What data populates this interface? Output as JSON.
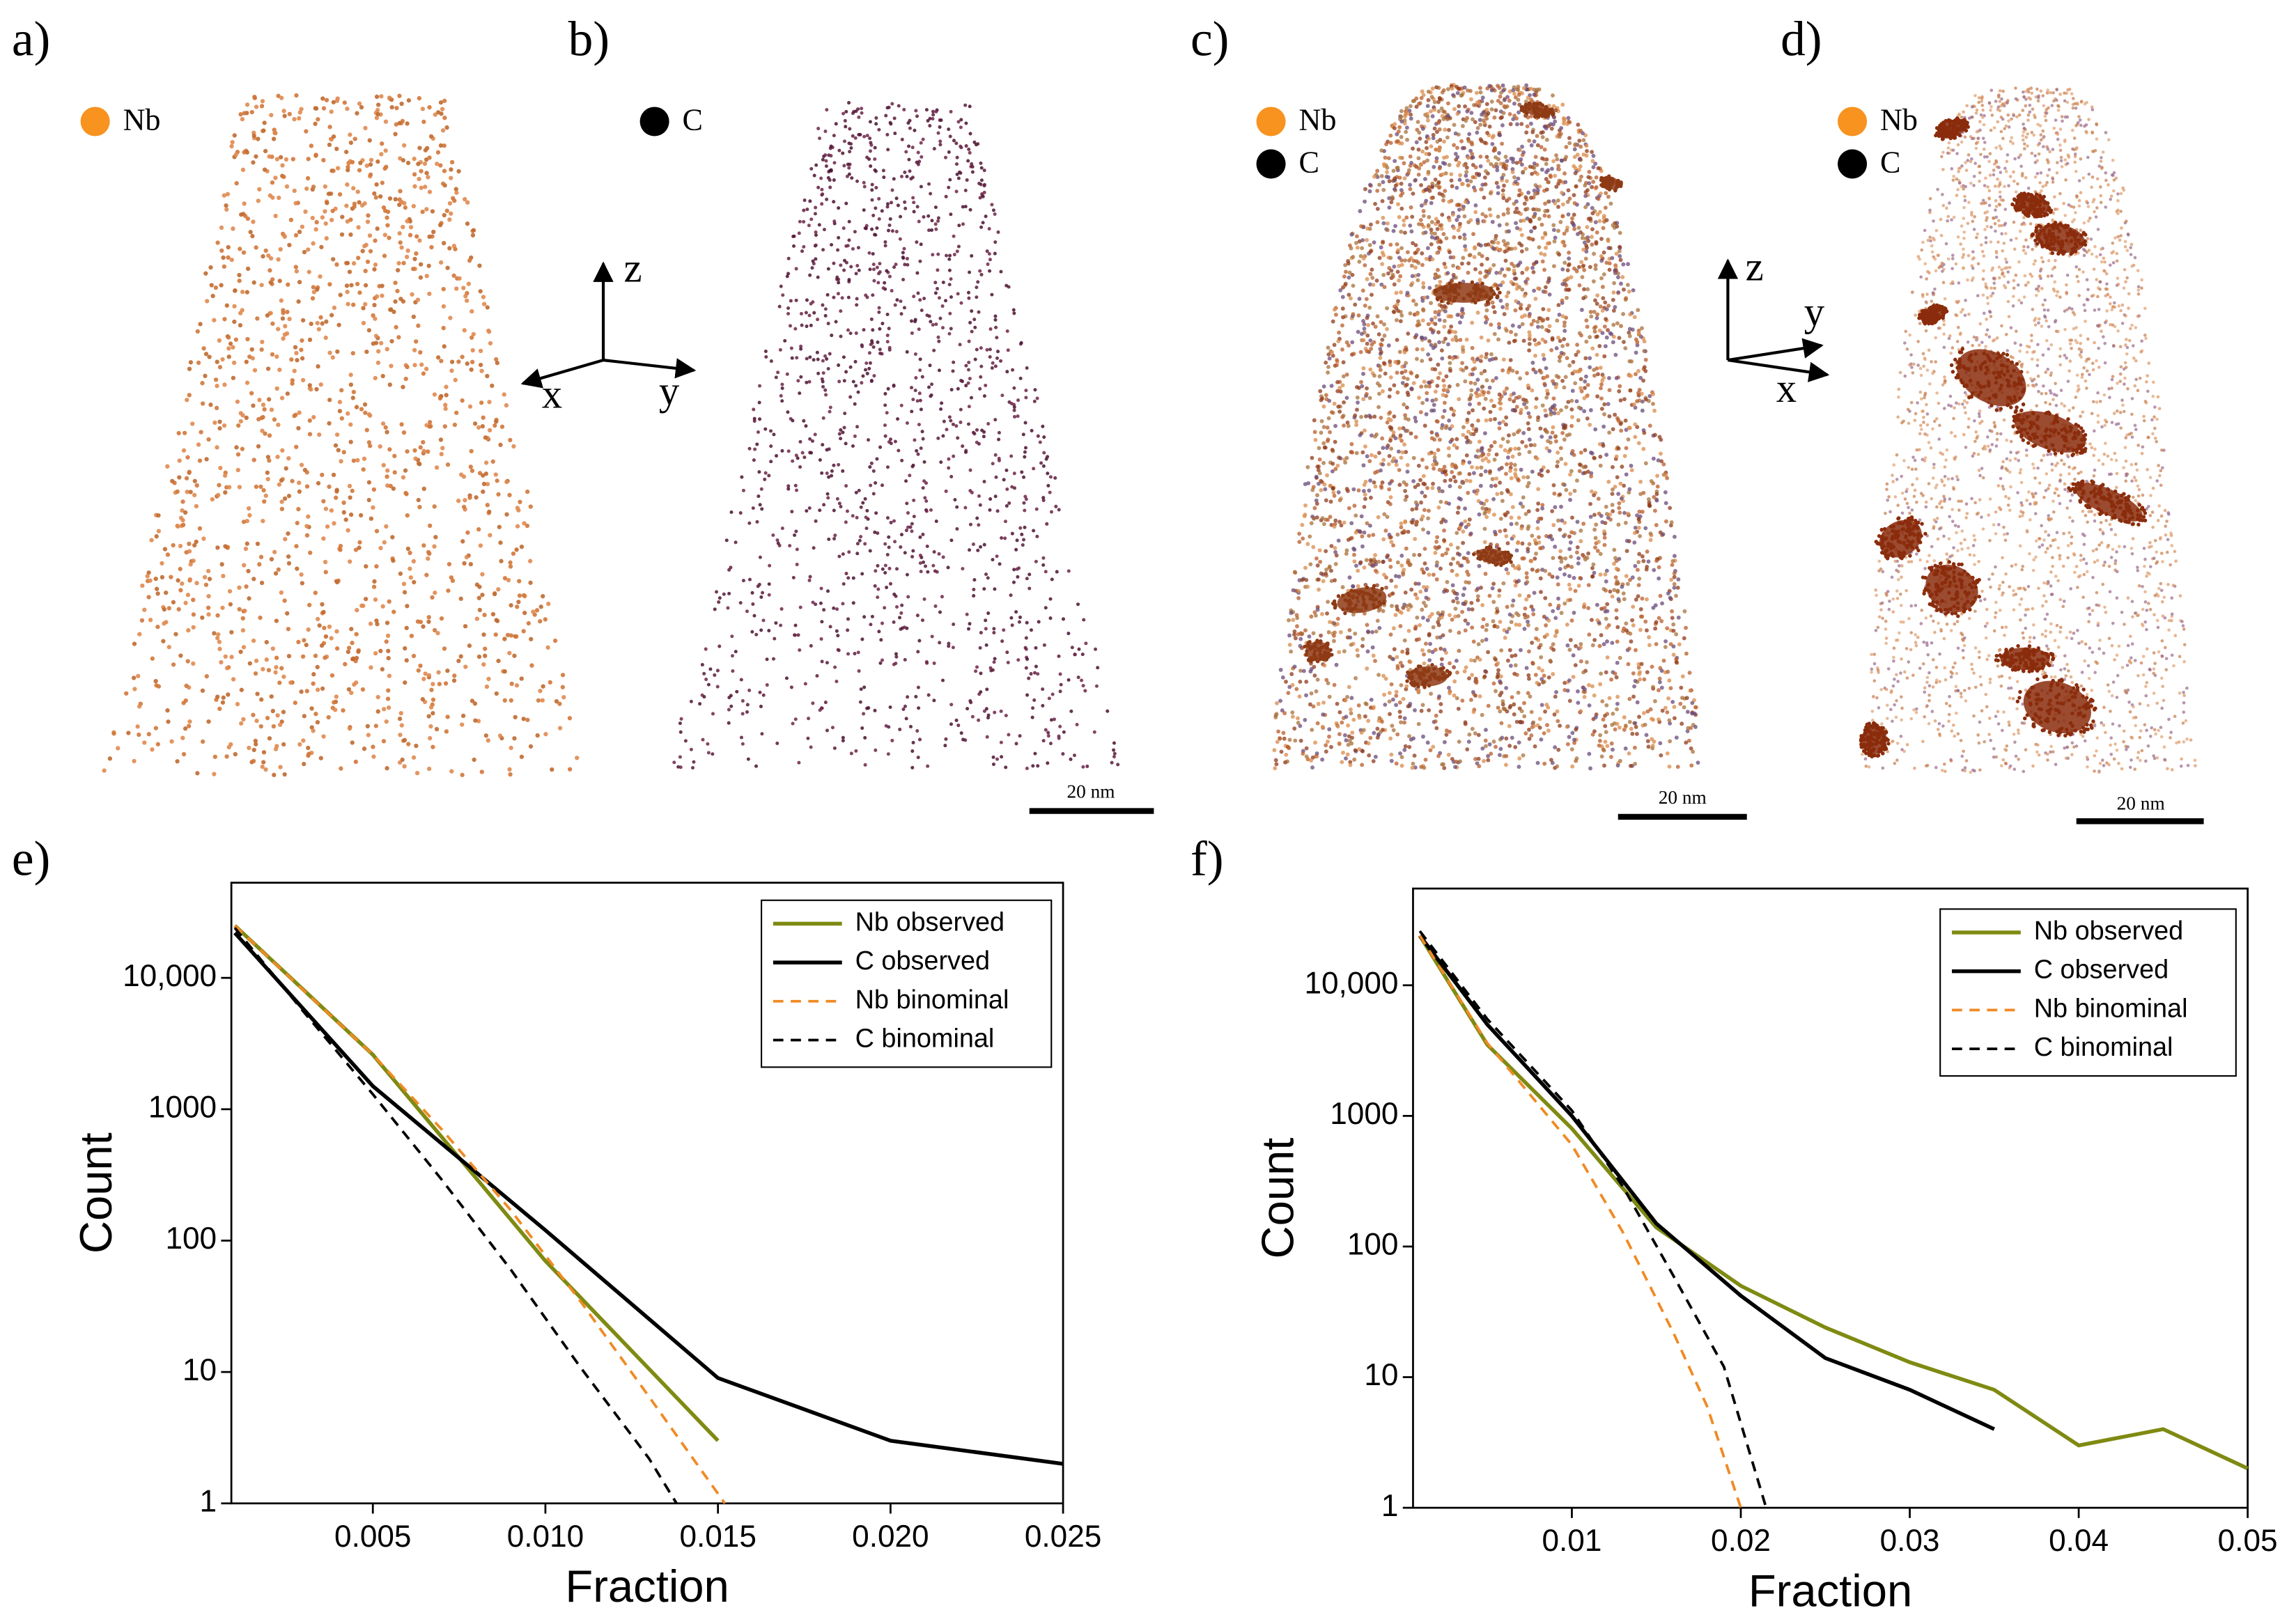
{
  "maps": [
    {
      "panel": "a)",
      "legend": [
        "Nb"
      ]
    },
    {
      "panel": "b)",
      "legend": [
        "C"
      ],
      "scale_bar": "20 nm"
    },
    {
      "panel": "c)",
      "legend": [
        "Nb",
        "C"
      ],
      "scale_bar": "20 nm"
    },
    {
      "panel": "d)",
      "legend": [
        "Nb",
        "C"
      ],
      "scale_bar": "20 nm"
    }
  ],
  "axes_triads": [
    {
      "z": "z",
      "x": "x",
      "y": "y"
    },
    {
      "z": "z",
      "x": "x",
      "y": "y"
    }
  ],
  "chart_data": [
    {
      "type": "line",
      "panel": "e)",
      "x_label": "Fraction",
      "y_label": "Count",
      "ylog": true,
      "legend": "upper right",
      "xlim": [
        0.0009,
        0.025
      ],
      "xticks": [
        0.005,
        {
          "value": 0.01,
          "label": "0.010"
        },
        0.015,
        {
          "value": 0.02,
          "label": "0.020"
        },
        0.025
      ],
      "ylim": [
        1,
        53000
      ],
      "yticks": [
        1,
        10,
        100,
        1000,
        {
          "value": 10000,
          "label": "10,000"
        }
      ],
      "series": [
        {
          "name": "Nb observed",
          "color": "#7f8a12",
          "dash": false,
          "x": [
            0.001,
            0.005,
            0.01,
            0.015
          ],
          "values": [
            25000,
            2600,
            70,
            3
          ]
        },
        {
          "name": "C observed",
          "color": "#000000",
          "dash": false,
          "x": [
            0.001,
            0.005,
            0.01,
            0.015,
            0.02,
            0.025
          ],
          "values": [
            22000,
            1500,
            120,
            9,
            3,
            2
          ]
        },
        {
          "name": "Nb binominal",
          "color": "#f08a24",
          "dash": true,
          "x": [
            0.001,
            0.003,
            0.005,
            0.007,
            0.009,
            0.011,
            0.013,
            0.0152
          ],
          "values": [
            25000,
            8000,
            2600,
            700,
            170,
            35,
            6.5,
            1
          ]
        },
        {
          "name": "C binominal",
          "color": "#000000",
          "dash": true,
          "x": [
            0.001,
            0.003,
            0.005,
            0.007,
            0.009,
            0.011,
            0.013,
            0.0138
          ],
          "values": [
            24000,
            5500,
            1300,
            290,
            60,
            11,
            2.2,
            1
          ]
        }
      ]
    },
    {
      "type": "line",
      "panel": "f)",
      "x_label": "Fraction",
      "y_label": "Count",
      "ylog": true,
      "legend": "upper right",
      "xlim": [
        0.0006,
        0.05
      ],
      "xticks": [
        0.01,
        0.02,
        0.03,
        0.04,
        0.05
      ],
      "ylim": [
        1,
        55000
      ],
      "yticks": [
        1,
        10,
        100,
        1000,
        {
          "value": 10000,
          "label": "10,000"
        }
      ],
      "series": [
        {
          "name": "Nb observed",
          "color": "#7f8a12",
          "dash": false,
          "x": [
            0.001,
            0.005,
            0.01,
            0.015,
            0.02,
            0.025,
            0.03,
            0.035,
            0.04,
            0.045,
            0.05
          ],
          "values": [
            24000,
            3500,
            800,
            140,
            50,
            24,
            13,
            8,
            3,
            4,
            2
          ]
        },
        {
          "name": "C observed",
          "color": "#000000",
          "dash": false,
          "x": [
            0.001,
            0.005,
            0.01,
            0.015,
            0.02,
            0.025,
            0.03,
            0.035
          ],
          "values": [
            24000,
            5000,
            1000,
            150,
            42,
            14,
            8,
            4
          ]
        },
        {
          "name": "Nb binominal",
          "color": "#f08a24",
          "dash": true,
          "x": [
            0.001,
            0.005,
            0.01,
            0.013,
            0.016,
            0.018,
            0.02
          ],
          "values": [
            24000,
            3600,
            600,
            130,
            22,
            6,
            1
          ]
        },
        {
          "name": "C binominal",
          "color": "#000000",
          "dash": true,
          "x": [
            0.001,
            0.005,
            0.01,
            0.013,
            0.016,
            0.019,
            0.0215
          ],
          "values": [
            26000,
            5500,
            1100,
            290,
            60,
            12,
            1
          ]
        }
      ]
    }
  ]
}
